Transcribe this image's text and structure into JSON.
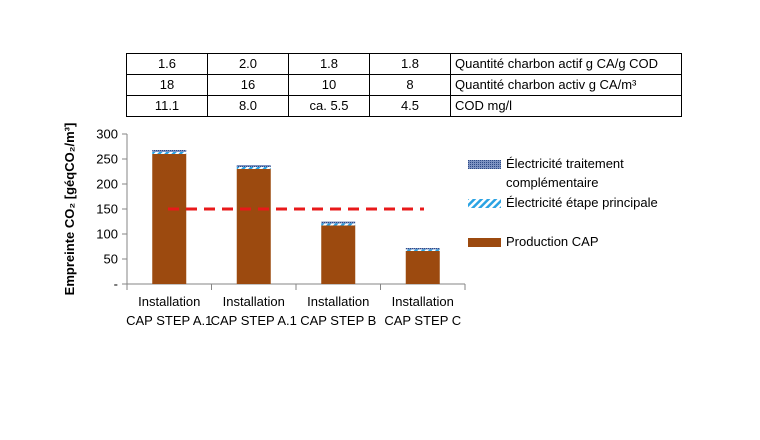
{
  "table": {
    "rows": [
      {
        "values": [
          "1.6",
          "2.0",
          "1.8",
          "1.8"
        ],
        "label": "Quantité charbon actif g CA/g COD"
      },
      {
        "values": [
          "18",
          "16",
          "10",
          "8"
        ],
        "label": "Quantité charbon activ g CA/m³"
      },
      {
        "values": [
          "11.1",
          "8.0",
          "ca. 5.5",
          "4.5"
        ],
        "label": "COD mg/l"
      }
    ]
  },
  "chart_data": {
    "type": "bar",
    "stacked": true,
    "categories": [
      [
        "Installation",
        "CAP STEP A.1"
      ],
      [
        "Installation",
        "CAP STEP A.1"
      ],
      [
        "Installation",
        "CAP STEP B"
      ],
      [
        "Installation",
        "CAP STEP C"
      ]
    ],
    "series": [
      {
        "name": "Production CAP",
        "values": [
          260,
          230,
          117,
          66
        ],
        "color": "#9C4A0F",
        "pattern": "solid"
      },
      {
        "name": "Électricité étape principale",
        "values": [
          4,
          4,
          4,
          3
        ],
        "color": "#2BA3E3",
        "pattern": "diagonal-stripes"
      },
      {
        "name": "Électricité traitement complémentaire",
        "values": [
          4,
          4,
          4,
          3
        ],
        "color": "#3E5C9A",
        "pattern": "dots"
      }
    ],
    "legend": [
      "Électricité traitement complémentaire",
      "Électricité étape principale",
      "Production CAP"
    ],
    "reference_line": {
      "value": 150,
      "color": "#E8191A",
      "style": "dashed"
    },
    "ylabel": "Empreinte CO₂ [géqCO₂/m³]",
    "ylim": [
      0,
      300
    ],
    "yticks": [
      "-",
      "50",
      "100",
      "150",
      "200",
      "250",
      "300"
    ],
    "legend_position": "right",
    "grid": false
  }
}
